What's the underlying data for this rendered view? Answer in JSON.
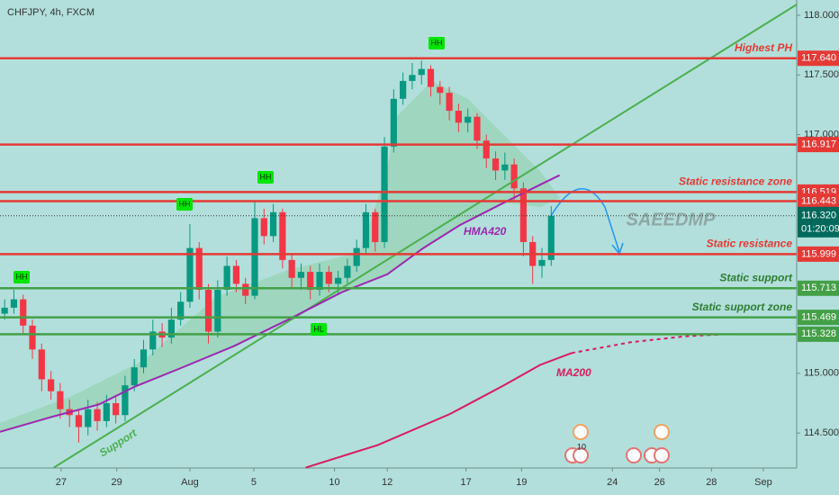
{
  "chart_data": {
    "type": "candlestick",
    "title": "CHFJPY, 4h, FXCM",
    "watermark": "SAEEDMP",
    "up_color": "#089981",
    "down_color": "#f23645",
    "open": [
      115.5,
      115.55,
      115.62,
      115.4,
      115.2,
      114.95,
      114.85,
      114.7,
      114.65,
      114.55,
      114.7,
      114.6,
      114.75,
      114.65,
      114.9,
      115.05,
      115.2,
      115.35,
      115.3,
      115.45,
      115.6,
      116.05,
      115.7,
      115.35,
      115.7,
      115.9,
      115.75,
      115.65,
      116.3,
      116.15,
      116.35,
      115.95,
      115.8,
      115.85,
      115.7,
      115.85,
      115.75,
      115.8,
      115.9,
      116.05,
      116.35,
      116.1,
      116.9,
      117.3,
      117.45,
      117.5,
      117.55,
      117.4,
      117.35,
      117.2,
      117.1,
      117.15,
      116.95,
      116.8,
      116.7,
      116.75,
      116.55,
      116.1,
      115.9,
      115.95
    ],
    "high": [
      115.62,
      115.7,
      115.66,
      115.45,
      115.25,
      115.02,
      114.92,
      114.78,
      114.7,
      114.78,
      114.76,
      114.82,
      114.8,
      114.98,
      115.12,
      115.28,
      115.45,
      115.42,
      115.55,
      115.68,
      116.25,
      116.1,
      115.75,
      115.78,
      115.98,
      115.95,
      115.8,
      116.45,
      116.38,
      116.42,
      116.38,
      116.0,
      115.92,
      115.9,
      115.92,
      115.9,
      115.86,
      115.96,
      116.12,
      116.42,
      116.38,
      116.98,
      117.38,
      117.52,
      117.6,
      117.62,
      117.58,
      117.45,
      117.4,
      117.26,
      117.22,
      117.18,
      117.0,
      116.86,
      116.85,
      116.8,
      116.6,
      116.15,
      116.05,
      116.4
    ],
    "low": [
      115.45,
      115.5,
      115.33,
      115.12,
      114.85,
      114.78,
      114.62,
      114.55,
      114.42,
      114.48,
      114.52,
      114.55,
      114.58,
      114.6,
      114.85,
      115.0,
      115.15,
      115.22,
      115.25,
      115.4,
      115.55,
      115.62,
      115.25,
      115.3,
      115.65,
      115.68,
      115.58,
      115.62,
      116.08,
      116.1,
      115.88,
      115.72,
      115.7,
      115.62,
      115.65,
      115.68,
      115.66,
      115.75,
      115.85,
      116.0,
      116.02,
      116.05,
      116.85,
      117.25,
      117.38,
      117.42,
      117.32,
      117.25,
      117.12,
      117.02,
      117.02,
      116.88,
      116.72,
      116.62,
      116.62,
      116.45,
      115.98,
      115.75,
      115.8,
      115.9
    ],
    "close": [
      115.55,
      115.62,
      115.4,
      115.2,
      114.95,
      114.85,
      114.7,
      114.65,
      114.55,
      114.7,
      114.6,
      114.75,
      114.65,
      114.9,
      115.05,
      115.2,
      115.35,
      115.3,
      115.45,
      115.6,
      116.05,
      115.7,
      115.35,
      115.7,
      115.9,
      115.75,
      115.65,
      116.3,
      116.15,
      116.35,
      115.95,
      115.8,
      115.85,
      115.7,
      115.85,
      115.75,
      115.8,
      115.9,
      116.05,
      116.35,
      116.1,
      116.9,
      117.3,
      117.45,
      117.5,
      117.55,
      117.4,
      117.35,
      117.2,
      117.1,
      117.15,
      116.95,
      116.8,
      116.7,
      116.75,
      116.55,
      116.1,
      115.9,
      115.95,
      116.32
    ],
    "xlim": [
      0,
      86
    ],
    "xticks": [
      {
        "value": 6.6,
        "label": "27"
      },
      {
        "value": 12.6,
        "label": "29"
      },
      {
        "value": 20.5,
        "label": "Aug"
      },
      {
        "value": 27.4,
        "label": "5"
      },
      {
        "value": 36.1,
        "label": "10"
      },
      {
        "value": 41.8,
        "label": "12"
      },
      {
        "value": 50.3,
        "label": "17"
      },
      {
        "value": 56.3,
        "label": "19"
      },
      {
        "value": 66.1,
        "label": "24"
      },
      {
        "value": 71.2,
        "label": "26"
      },
      {
        "value": 76.8,
        "label": "28"
      },
      {
        "value": 82.4,
        "label": "Sep"
      }
    ],
    "ylim": [
      114.207,
      118.128
    ],
    "yticks": [
      {
        "value": 118,
        "label": "118.000"
      },
      {
        "value": 117.5,
        "label": "117.500"
      },
      {
        "value": 117,
        "label": "117.000"
      },
      {
        "value": 115,
        "label": "115.000"
      },
      {
        "value": 114.5,
        "label": "114.500"
      }
    ],
    "levels": [
      {
        "value": 117.64,
        "label": "117.640",
        "name": "Highest PH",
        "color": "#e53935"
      },
      {
        "value": 116.917,
        "label": "116.917",
        "color": "#e53935"
      },
      {
        "value": 116.519,
        "label": "116.519",
        "name": "Static resistance zone",
        "color": "#e53935"
      },
      {
        "value": 116.443,
        "label": "116.443",
        "color": "#e53935"
      },
      {
        "value": 115.999,
        "label": "115.999",
        "name": "Static resistance",
        "color": "#e53935"
      },
      {
        "value": 115.713,
        "label": "115.713",
        "name": "Static support",
        "color": "#43a047"
      },
      {
        "value": 115.469,
        "label": "115.469",
        "name": "Static support zone",
        "color": "#43a047"
      },
      {
        "value": 115.328,
        "label": "115.328",
        "color": "#43a047"
      }
    ],
    "current": {
      "value": 116.32,
      "label": "116.320",
      "countdown": "01:20:09",
      "color": "#00695c"
    },
    "lines": [
      {
        "name": "Support",
        "color": "#4caf50",
        "x": [
          5.8,
          86
        ],
        "values": [
          114.21,
          118.09
        ]
      },
      {
        "name": "HMA420",
        "color": "#9c27b0",
        "x": [
          0,
          5.8,
          10.7,
          14.6,
          19.4,
          25.3,
          31.1,
          36.9,
          41.8,
          45.7,
          49.6,
          54.4,
          58.3,
          60.4
        ],
        "values": [
          114.51,
          114.64,
          114.74,
          114.89,
          115.04,
          115.23,
          115.45,
          115.68,
          115.83,
          116.05,
          116.24,
          116.43,
          116.58,
          116.66
        ]
      },
      {
        "name": "MA200",
        "color": "#d81b60",
        "x": [
          33.0,
          40.8,
          48.6,
          54.4,
          58.3,
          61.7
        ],
        "values": [
          114.21,
          114.4,
          114.66,
          114.9,
          115.07,
          115.17
        ]
      },
      {
        "color": "#d81b60",
        "dash": true,
        "x": [
          61.7,
          68.0,
          73.9,
          78.7
        ],
        "values": [
          115.17,
          115.26,
          115.31,
          115.33
        ]
      }
    ],
    "annotations": [
      "HH",
      "HH",
      "HH",
      "HH",
      "HL"
    ],
    "event_count": "10"
  }
}
